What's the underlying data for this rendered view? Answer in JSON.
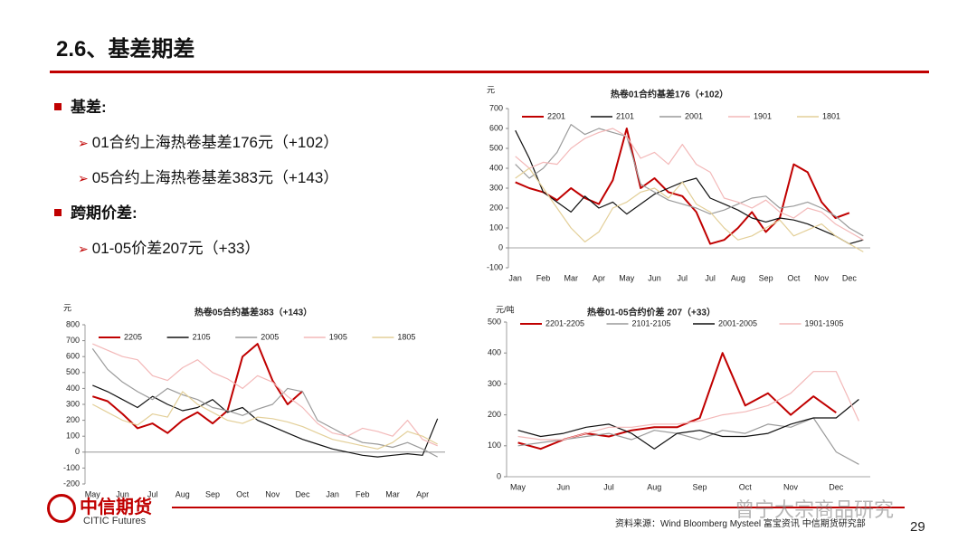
{
  "slide": {
    "title": "2.6、基差期差",
    "bullets": [
      {
        "heading": "基差:",
        "items": [
          "01合约上海热卷基差176元（+102）",
          "05合约上海热卷基差383元（+143）"
        ]
      },
      {
        "heading": "跨期价差:",
        "items": [
          "01-05价差207元（+33）"
        ]
      }
    ]
  },
  "chart_data": [
    {
      "type": "line",
      "title": "热卷01合约基差176（+102）",
      "ylabel": "元",
      "legend": "top",
      "ylim": [
        -100,
        700
      ],
      "yticks": [
        -100,
        0,
        100,
        200,
        300,
        400,
        500,
        600,
        700
      ],
      "categories": [
        "Jan",
        null,
        "Feb",
        null,
        "Mar",
        null,
        "Apr",
        null,
        "May",
        null,
        "Jun",
        null,
        "Jul",
        null,
        "Jul",
        null,
        "Aug",
        null,
        "Sep",
        null,
        "Oct",
        null,
        "Nov",
        null,
        "Dec",
        null
      ],
      "series": [
        {
          "name": "2201",
          "color": "#c00000",
          "values": [
            330,
            300,
            280,
            240,
            300,
            250,
            220,
            340,
            600,
            300,
            350,
            280,
            260,
            180,
            20,
            40,
            100,
            180,
            80,
            150,
            420,
            380,
            230,
            150,
            176,
            null
          ]
        },
        {
          "name": "2101",
          "color": "#111111",
          "values": [
            590,
            450,
            280,
            230,
            180,
            260,
            200,
            230,
            170,
            220,
            270,
            300,
            330,
            350,
            250,
            220,
            190,
            150,
            130,
            150,
            140,
            120,
            90,
            60,
            20,
            40
          ]
        },
        {
          "name": "2001",
          "color": "#9a9a9a",
          "values": [
            420,
            350,
            400,
            480,
            620,
            570,
            600,
            580,
            560,
            320,
            280,
            240,
            220,
            200,
            170,
            190,
            220,
            250,
            260,
            200,
            210,
            230,
            200,
            160,
            100,
            60
          ]
        },
        {
          "name": "1901",
          "color": "#f3b8b8",
          "values": [
            460,
            400,
            430,
            420,
            500,
            550,
            580,
            600,
            560,
            450,
            480,
            420,
            520,
            420,
            380,
            250,
            230,
            200,
            240,
            180,
            150,
            200,
            180,
            120,
            80,
            40
          ]
        },
        {
          "name": "1801",
          "color": "#e3cf98",
          "values": [
            350,
            400,
            300,
            200,
            100,
            30,
            80,
            200,
            230,
            280,
            300,
            250,
            330,
            220,
            180,
            100,
            40,
            60,
            100,
            140,
            60,
            90,
            120,
            60,
            20,
            -20
          ]
        }
      ]
    },
    {
      "type": "line",
      "title": "热卷05合约基差383（+143）",
      "ylabel": "元",
      "legend": "top",
      "ylim": [
        -200,
        800
      ],
      "yticks": [
        -200,
        -100,
        0,
        100,
        200,
        300,
        400,
        500,
        600,
        700,
        800
      ],
      "categories": [
        "May",
        null,
        "Jun",
        null,
        "Jul",
        null,
        "Aug",
        null,
        "Sep",
        null,
        "Oct",
        null,
        "Nov",
        null,
        "Dec",
        null,
        "Jan",
        null,
        "Feb",
        null,
        "Mar",
        null,
        "Apr",
        null
      ],
      "series": [
        {
          "name": "2205",
          "color": "#c00000",
          "values": [
            350,
            320,
            240,
            150,
            180,
            120,
            200,
            250,
            180,
            260,
            600,
            680,
            450,
            300,
            383,
            null,
            null,
            null,
            null,
            null,
            null,
            null,
            null,
            null
          ]
        },
        {
          "name": "2105",
          "color": "#111111",
          "values": [
            420,
            380,
            330,
            280,
            350,
            300,
            260,
            280,
            330,
            250,
            280,
            200,
            160,
            120,
            80,
            50,
            20,
            0,
            -20,
            -30,
            -20,
            -10,
            -20,
            210
          ]
        },
        {
          "name": "2005",
          "color": "#9a9a9a",
          "values": [
            650,
            520,
            440,
            380,
            330,
            400,
            360,
            330,
            280,
            260,
            230,
            270,
            300,
            400,
            380,
            200,
            150,
            100,
            60,
            50,
            30,
            60,
            20,
            -30
          ]
        },
        {
          "name": "1905",
          "color": "#f3b8b8",
          "values": [
            680,
            640,
            600,
            580,
            480,
            450,
            530,
            580,
            500,
            460,
            400,
            480,
            440,
            350,
            280,
            180,
            120,
            100,
            150,
            130,
            100,
            200,
            80,
            40
          ]
        },
        {
          "name": "1805",
          "color": "#e3cf98",
          "values": [
            300,
            250,
            200,
            170,
            240,
            220,
            380,
            300,
            250,
            200,
            180,
            220,
            210,
            190,
            160,
            120,
            80,
            60,
            40,
            20,
            60,
            130,
            100,
            50
          ]
        }
      ]
    },
    {
      "type": "line",
      "title": "热卷01-05合约价差 207（+33）",
      "ylabel": "元/吨",
      "legend": "above",
      "ylim": [
        0,
        500
      ],
      "yticks": [
        0,
        100,
        200,
        300,
        400,
        500
      ],
      "categories": [
        "May",
        null,
        "Jun",
        null,
        "Jul",
        null,
        "Aug",
        null,
        "Sep",
        null,
        "Oct",
        null,
        "Nov",
        null,
        "Dec",
        null
      ],
      "series": [
        {
          "name": "2201-2205",
          "color": "#c00000",
          "values": [
            110,
            90,
            120,
            140,
            130,
            150,
            160,
            160,
            190,
            400,
            230,
            270,
            200,
            260,
            207,
            null
          ]
        },
        {
          "name": "2101-2105",
          "color": "#9a9a9a",
          "values": [
            100,
            110,
            120,
            130,
            140,
            120,
            150,
            140,
            120,
            150,
            140,
            170,
            160,
            190,
            80,
            40
          ]
        },
        {
          "name": "2001-2005",
          "color": "#111111",
          "values": [
            150,
            130,
            140,
            160,
            170,
            140,
            90,
            140,
            150,
            130,
            130,
            140,
            170,
            190,
            190,
            250
          ]
        },
        {
          "name": "1901-1905",
          "color": "#f3b8b8",
          "values": [
            130,
            120,
            120,
            140,
            160,
            160,
            170,
            170,
            180,
            200,
            210,
            230,
            270,
            340,
            340,
            180
          ]
        }
      ]
    }
  ],
  "footer": {
    "logo": "中信期货",
    "logo_en": "CITIC Futures",
    "source": "资料来源：Wind Bloomberg Mysteel 富宝资讯 中信期货研究部",
    "page": "29",
    "watermark": "曾宁大宗商品研究"
  }
}
